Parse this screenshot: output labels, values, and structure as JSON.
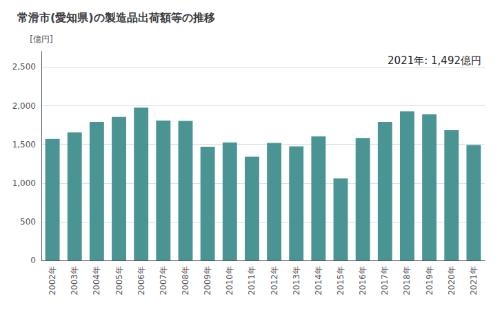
{
  "chart_data": {
    "type": "bar",
    "title": "常滑市(愛知県)の製造品出荷額等の推移",
    "ylabel": "[億円]",
    "annotation": "2021年: 1,492億円",
    "categories": [
      "2002年",
      "2003年",
      "2004年",
      "2005年",
      "2006年",
      "2007年",
      "2008年",
      "2009年",
      "2010年",
      "2011年",
      "2012年",
      "2013年",
      "2014年",
      "2015年",
      "2016年",
      "2017年",
      "2018年",
      "2019年",
      "2020年",
      "2021年"
    ],
    "values": [
      1570,
      1655,
      1790,
      1855,
      1975,
      1810,
      1805,
      1470,
      1525,
      1340,
      1520,
      1475,
      1605,
      1060,
      1585,
      1790,
      1930,
      1890,
      1685,
      1492
    ],
    "color": "#4a9494",
    "ylim": [
      0,
      2700
    ],
    "yticks": [
      0,
      500,
      {
        "value": 1000,
        "label": "1,000"
      },
      {
        "value": 1500,
        "label": "1,500"
      },
      {
        "value": 2000,
        "label": "2,000"
      },
      {
        "value": 2500,
        "label": "2,500"
      }
    ],
    "grid": true
  }
}
